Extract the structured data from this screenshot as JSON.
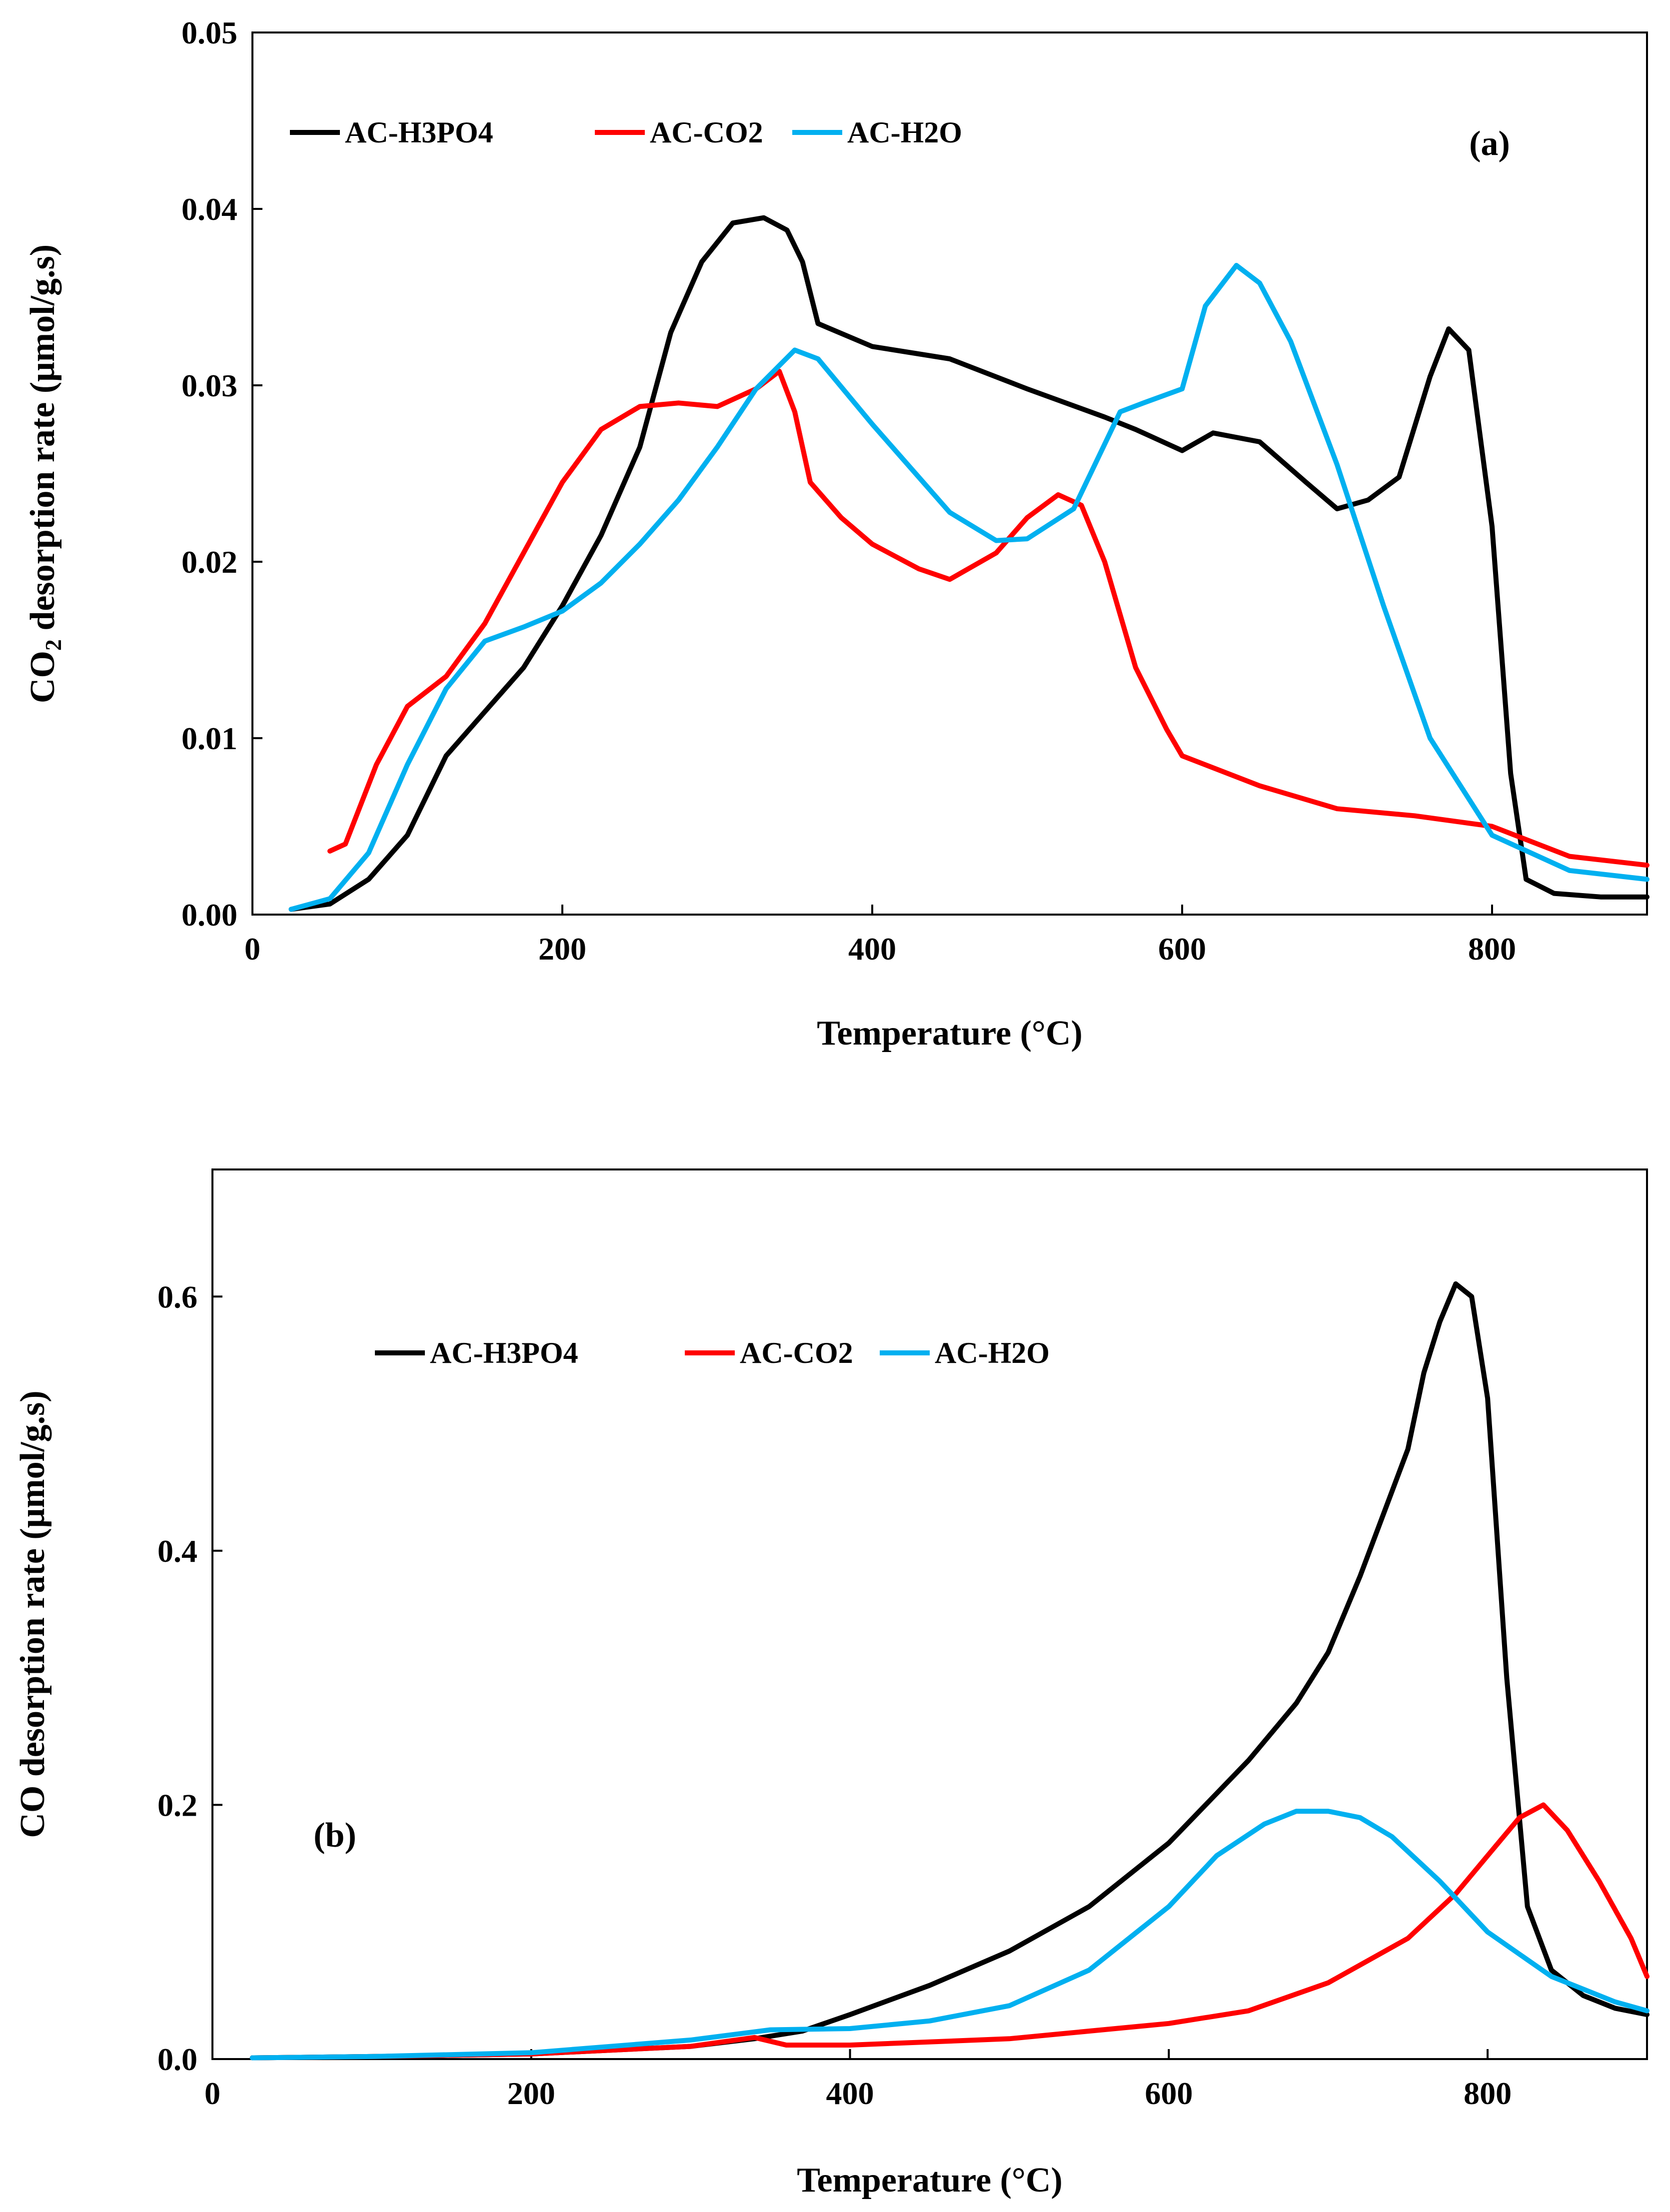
{
  "chart_data": [
    {
      "type": "line",
      "panel_label": "(a)",
      "ylabel_parts": [
        "CO",
        "2",
        " desorption rate (μmol/g.s)"
      ],
      "xlabel": "Temperature (°C)",
      "xlim": [
        0,
        900
      ],
      "ylim": [
        0,
        0.05
      ],
      "xticks": [
        0,
        200,
        400,
        600,
        800
      ],
      "xtick_labels": [
        "0",
        "200",
        "400",
        "600",
        "800"
      ],
      "yticks": [
        0,
        0.01,
        0.02,
        0.03,
        0.04,
        0.05
      ],
      "ytick_labels": [
        "0.00",
        "0.01",
        "0.02",
        "0.03",
        "0.04",
        "0.05"
      ],
      "grid": false,
      "legend_position": "top-left",
      "series": [
        {
          "name": "AC-H3PO4",
          "color": "#000000",
          "x": [
            25,
            50,
            75,
            100,
            125,
            150,
            175,
            200,
            225,
            250,
            270,
            290,
            310,
            330,
            345,
            355,
            365,
            400,
            450,
            500,
            550,
            570,
            600,
            620,
            650,
            680,
            700,
            720,
            740,
            760,
            772,
            785,
            800,
            812,
            822,
            840,
            870,
            900
          ],
          "y": [
            0.0003,
            0.0006,
            0.002,
            0.0045,
            0.009,
            0.0115,
            0.014,
            0.0175,
            0.0215,
            0.0265,
            0.033,
            0.037,
            0.0392,
            0.0395,
            0.0388,
            0.037,
            0.0335,
            0.0322,
            0.0315,
            0.0298,
            0.0282,
            0.0275,
            0.0263,
            0.0273,
            0.0268,
            0.0245,
            0.023,
            0.0235,
            0.0248,
            0.0305,
            0.0332,
            0.032,
            0.022,
            0.008,
            0.002,
            0.0012,
            0.001,
            0.001
          ]
        },
        {
          "name": "AC-CO2",
          "color": "#FF0000",
          "x": [
            50,
            60,
            80,
            100,
            125,
            150,
            175,
            200,
            225,
            250,
            275,
            300,
            325,
            340,
            350,
            360,
            380,
            400,
            430,
            450,
            480,
            500,
            520,
            535,
            550,
            570,
            590,
            600,
            650,
            700,
            750,
            800,
            850,
            900
          ],
          "y": [
            0.0036,
            0.004,
            0.0085,
            0.0118,
            0.0135,
            0.0165,
            0.0205,
            0.0245,
            0.0275,
            0.0288,
            0.029,
            0.0288,
            0.0298,
            0.0308,
            0.0285,
            0.0245,
            0.0225,
            0.021,
            0.0196,
            0.019,
            0.0205,
            0.0225,
            0.0238,
            0.0232,
            0.02,
            0.014,
            0.0105,
            0.009,
            0.0073,
            0.006,
            0.0056,
            0.005,
            0.0033,
            0.0028
          ]
        },
        {
          "name": "AC-H2O",
          "color": "#00B0F0",
          "x": [
            25,
            50,
            75,
            100,
            125,
            150,
            175,
            200,
            225,
            250,
            275,
            300,
            325,
            350,
            365,
            400,
            450,
            480,
            500,
            530,
            560,
            575,
            600,
            615,
            635,
            650,
            670,
            700,
            730,
            760,
            800,
            850,
            900
          ],
          "y": [
            0.0003,
            0.0009,
            0.0035,
            0.0085,
            0.0128,
            0.0155,
            0.0163,
            0.0172,
            0.0188,
            0.021,
            0.0235,
            0.0265,
            0.0298,
            0.032,
            0.0315,
            0.0278,
            0.0228,
            0.0212,
            0.0213,
            0.023,
            0.0285,
            0.029,
            0.0298,
            0.0345,
            0.0368,
            0.0358,
            0.0325,
            0.0255,
            0.0175,
            0.01,
            0.0045,
            0.0025,
            0.002
          ]
        }
      ]
    },
    {
      "type": "line",
      "panel_label": "(b)",
      "ylabel_parts": [
        "CO desorption rate (μmol/g.s)"
      ],
      "xlabel": "Temperature (°C)",
      "xlim": [
        0,
        900
      ],
      "ylim": [
        0,
        0.7
      ],
      "xticks": [
        0,
        200,
        400,
        600,
        800
      ],
      "xtick_labels": [
        "0",
        "200",
        "400",
        "600",
        "800"
      ],
      "yticks": [
        0,
        0.2,
        0.4,
        0.6
      ],
      "ytick_labels": [
        "0.0",
        "0.2",
        "0.4",
        "0.6"
      ],
      "grid": false,
      "legend_position": "top-left",
      "series": [
        {
          "name": "AC-H3PO4",
          "color": "#000000",
          "x": [
            25,
            100,
            200,
            300,
            340,
            370,
            400,
            450,
            500,
            550,
            600,
            650,
            680,
            700,
            720,
            750,
            760,
            770,
            780,
            790,
            800,
            812,
            825,
            840,
            860,
            880,
            900
          ],
          "y": [
            0.001,
            0.002,
            0.004,
            0.01,
            0.016,
            0.022,
            0.035,
            0.058,
            0.085,
            0.12,
            0.17,
            0.235,
            0.28,
            0.32,
            0.38,
            0.48,
            0.54,
            0.58,
            0.61,
            0.6,
            0.52,
            0.3,
            0.12,
            0.07,
            0.05,
            0.04,
            0.035
          ]
        },
        {
          "name": "AC-CO2",
          "color": "#FF0000",
          "x": [
            25,
            100,
            200,
            300,
            340,
            360,
            400,
            500,
            600,
            650,
            700,
            750,
            780,
            800,
            820,
            835,
            850,
            870,
            890,
            900
          ],
          "y": [
            0.001,
            0.002,
            0.004,
            0.01,
            0.017,
            0.011,
            0.011,
            0.016,
            0.028,
            0.038,
            0.06,
            0.095,
            0.13,
            0.16,
            0.19,
            0.2,
            0.18,
            0.14,
            0.095,
            0.065
          ]
        },
        {
          "name": "AC-H2O",
          "color": "#00B0F0",
          "x": [
            25,
            100,
            200,
            300,
            350,
            400,
            450,
            500,
            550,
            600,
            630,
            660,
            680,
            700,
            720,
            740,
            770,
            800,
            840,
            880,
            900
          ],
          "y": [
            0.001,
            0.002,
            0.005,
            0.015,
            0.023,
            0.024,
            0.03,
            0.042,
            0.07,
            0.12,
            0.16,
            0.185,
            0.195,
            0.195,
            0.19,
            0.175,
            0.14,
            0.1,
            0.065,
            0.045,
            0.038
          ]
        }
      ]
    }
  ]
}
